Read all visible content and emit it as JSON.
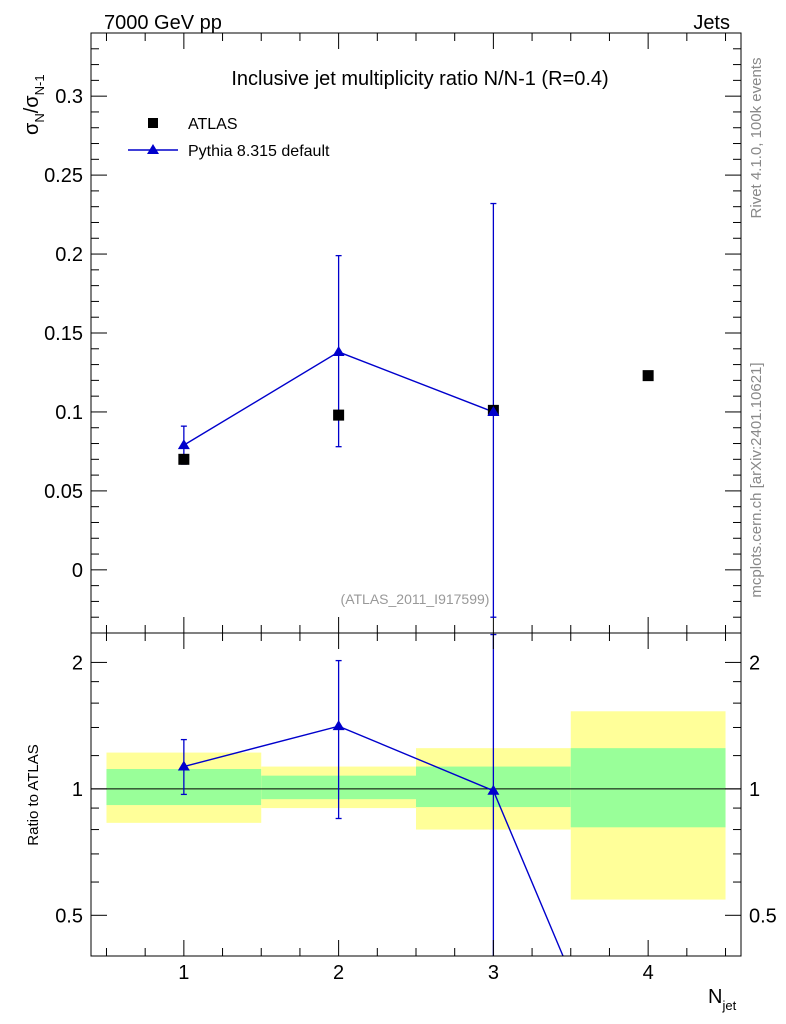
{
  "header": {
    "energy_label": "7000 GeV pp",
    "category_label": "Jets"
  },
  "side_labels": {
    "rivet_version": "Rivet 4.1.0,  100k events",
    "source": "mcplots.cern.ch [arXiv:2401.10621]"
  },
  "chart_data": [
    {
      "type": "scatter",
      "title": "Inclusive jet multiplicity ratio N/N-1 (R=0.4)",
      "analysis_id": "(ATLAS_2011_I917599)",
      "ylabel_main": "σ",
      "ylabel_sub_n": "N",
      "ylabel_sep": "/σ",
      "ylabel_sub_n1": "N-1",
      "xlim": [
        0.4,
        4.6
      ],
      "ylim": [
        -0.04,
        0.34
      ],
      "yticks": [
        0,
        0.05,
        0.1,
        0.15,
        0.2,
        0.25,
        0.3
      ],
      "ytick_labels": [
        "0",
        "0.05",
        "0.1",
        "0.15",
        "0.2",
        "0.25",
        "0.3"
      ],
      "legend": [
        {
          "label": "ATLAS",
          "marker": "square",
          "color": "#000000"
        },
        {
          "label": "Pythia 8.315 default",
          "marker": "triangle",
          "color": "#0000cc"
        }
      ],
      "series": [
        {
          "name": "ATLAS",
          "color": "#000000",
          "x": [
            1,
            2,
            3,
            4
          ],
          "y": [
            0.07,
            0.098,
            0.101,
            0.123
          ]
        },
        {
          "name": "Pythia 8.315 default",
          "color": "#0000cc",
          "x": [
            1,
            2,
            3
          ],
          "y": [
            0.079,
            0.138,
            0.1
          ],
          "err_low": [
            0.012,
            0.06,
            0.13
          ],
          "err_high": [
            0.012,
            0.061,
            0.132
          ]
        }
      ]
    },
    {
      "type": "scatter",
      "title": "",
      "ylabel": "Ratio to ATLAS",
      "xlabel_main": "N",
      "xlabel_sub": "jet",
      "xlim": [
        0.4,
        4.6
      ],
      "ylim": [
        0.4,
        2.35
      ],
      "y_scale": "log",
      "xticks": [
        1,
        2,
        3,
        4
      ],
      "xtick_labels": [
        "1",
        "2",
        "3",
        "4"
      ],
      "yticks": [
        0.5,
        1,
        2
      ],
      "ytick_labels": [
        "0.5",
        "1",
        "2"
      ],
      "bands": [
        {
          "x0": 0.5,
          "x1": 1.5,
          "y_low": 0.83,
          "y_high": 1.22,
          "inner_low": 0.915,
          "inner_high": 1.115
        },
        {
          "x0": 1.5,
          "x1": 2.5,
          "y_low": 0.9,
          "y_high": 1.13,
          "inner_low": 0.945,
          "inner_high": 1.075
        },
        {
          "x0": 2.5,
          "x1": 3.5,
          "y_low": 0.8,
          "y_high": 1.25,
          "inner_low": 0.905,
          "inner_high": 1.13
        },
        {
          "x0": 3.5,
          "x1": 4.5,
          "y_low": 0.545,
          "y_high": 1.53,
          "inner_low": 0.81,
          "inner_high": 1.25
        }
      ],
      "series": [
        {
          "name": "Pythia 8.315 default / ATLAS",
          "color": "#0000cc",
          "x": [
            1,
            2,
            3,
            4
          ],
          "y": [
            1.13,
            1.41,
            0.99,
            0.0
          ],
          "err_low": [
            0.16,
            0.56,
            0.99,
            0
          ],
          "err_high": [
            0.18,
            0.61,
            1.34,
            0
          ]
        }
      ],
      "band_colors": {
        "outer": "#ffff99",
        "inner": "#99ff99"
      }
    }
  ]
}
